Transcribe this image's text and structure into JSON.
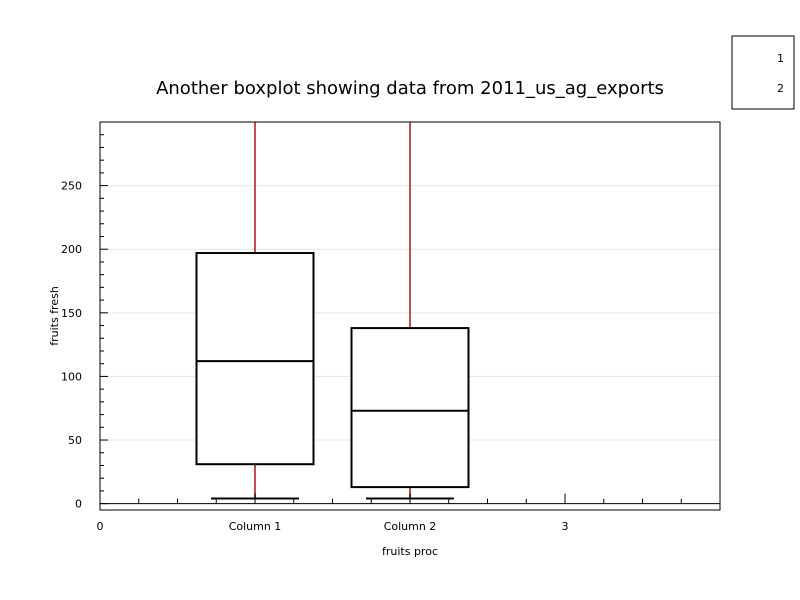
{
  "chart_data": {
    "type": "boxplot",
    "title": "Another  boxplot showing data from 2011_us_ag_exports",
    "xlabel": "fruits proc",
    "ylabel": "fruits fresh",
    "x_ticks": [
      {
        "x": 0,
        "label": "0"
      },
      {
        "x": 1,
        "label": "Column 1"
      },
      {
        "x": 2,
        "label": "Column 2"
      },
      {
        "x": 3,
        "label": "3"
      }
    ],
    "xlim": [
      0,
      4
    ],
    "ylim": [
      -5,
      300
    ],
    "y_ticks": [
      0,
      50,
      100,
      150,
      200,
      250
    ],
    "grid": "horizontal",
    "legend": {
      "placement": "top-right",
      "entries": [
        "1",
        "2"
      ]
    },
    "whisker_color": "#c0504d",
    "box_color": "#000000",
    "series": [
      {
        "category": "Column 1",
        "x": 1,
        "whisker_low": 4,
        "q1": 31,
        "median": 112,
        "q3": 197,
        "whisker_high": 300
      },
      {
        "category": "Column 2",
        "x": 2,
        "whisker_low": 4,
        "q1": 13,
        "median": 73,
        "q3": 138,
        "whisker_high": 300
      }
    ]
  }
}
